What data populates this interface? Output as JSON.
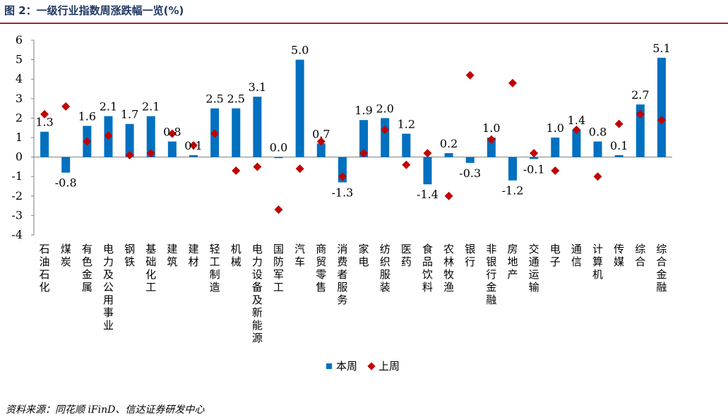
{
  "header": {
    "title": "图 2：一级行业指数周涨跌幅一览(%)"
  },
  "footer": {
    "source": "资料来源：同花顺 iFinD、信达证券研发中心"
  },
  "legend": {
    "bar_label": "本周",
    "marker_label": "上周"
  },
  "colors": {
    "bar": "#0070c0",
    "marker": "#c00000",
    "title": "#1f3864",
    "rule": "#9e2a2b"
  },
  "chart_data": {
    "type": "bar",
    "ylim": [
      -4,
      6
    ],
    "yticks": [
      -4,
      -3,
      -2,
      -1,
      0,
      1,
      2,
      3,
      4,
      5,
      6
    ],
    "categories": [
      "石油石化",
      "煤炭",
      "有色金属",
      "电力及公用事业",
      "钢铁",
      "基础化工",
      "建筑",
      "建材",
      "轻工制造",
      "机械",
      "电力设备及新能源",
      "国防军工",
      "汽车",
      "商贸零售",
      "消费者服务",
      "家电",
      "纺织服装",
      "医药",
      "食品饮料",
      "农林牧渔",
      "银行",
      "非银行金融",
      "房地产",
      "交通运输",
      "电子",
      "通信",
      "计算机",
      "传媒",
      "综合",
      "综合金融"
    ],
    "series": [
      {
        "name": "本周",
        "kind": "bar",
        "values": [
          1.3,
          -0.8,
          1.6,
          2.1,
          1.7,
          2.1,
          0.8,
          0.1,
          2.5,
          2.5,
          3.1,
          0.0,
          5.0,
          0.7,
          -1.3,
          1.9,
          2.0,
          1.2,
          -1.4,
          0.2,
          -0.3,
          1.0,
          -1.2,
          -0.1,
          1.0,
          1.4,
          0.8,
          0.1,
          2.7,
          5.1
        ],
        "labels": [
          "1.3",
          "-0.8",
          "1.6",
          "2.1",
          "1.7",
          "2.1",
          "0.8",
          "0.1",
          "2.5",
          "2.5",
          "3.1",
          "0.0",
          "5.0",
          "0.7",
          "-1.3",
          "1.9",
          "2.0",
          "1.2",
          "-1.4",
          "0.2",
          "-0.3",
          "1.0",
          "-1.2",
          "-0.1",
          "1.0",
          "1.4",
          "0.8",
          "0.1",
          "2.7",
          "5.1"
        ]
      },
      {
        "name": "上周",
        "kind": "marker",
        "values": [
          2.2,
          2.6,
          0.8,
          1.1,
          0.1,
          0.2,
          1.2,
          0.6,
          1.2,
          -0.7,
          -0.5,
          -2.7,
          -0.6,
          0.8,
          -1.0,
          0.2,
          1.4,
          -0.4,
          0.2,
          -2.0,
          4.2,
          0.9,
          3.8,
          0.2,
          -0.7,
          1.4,
          -1.0,
          1.7,
          2.2,
          1.9
        ]
      }
    ]
  }
}
